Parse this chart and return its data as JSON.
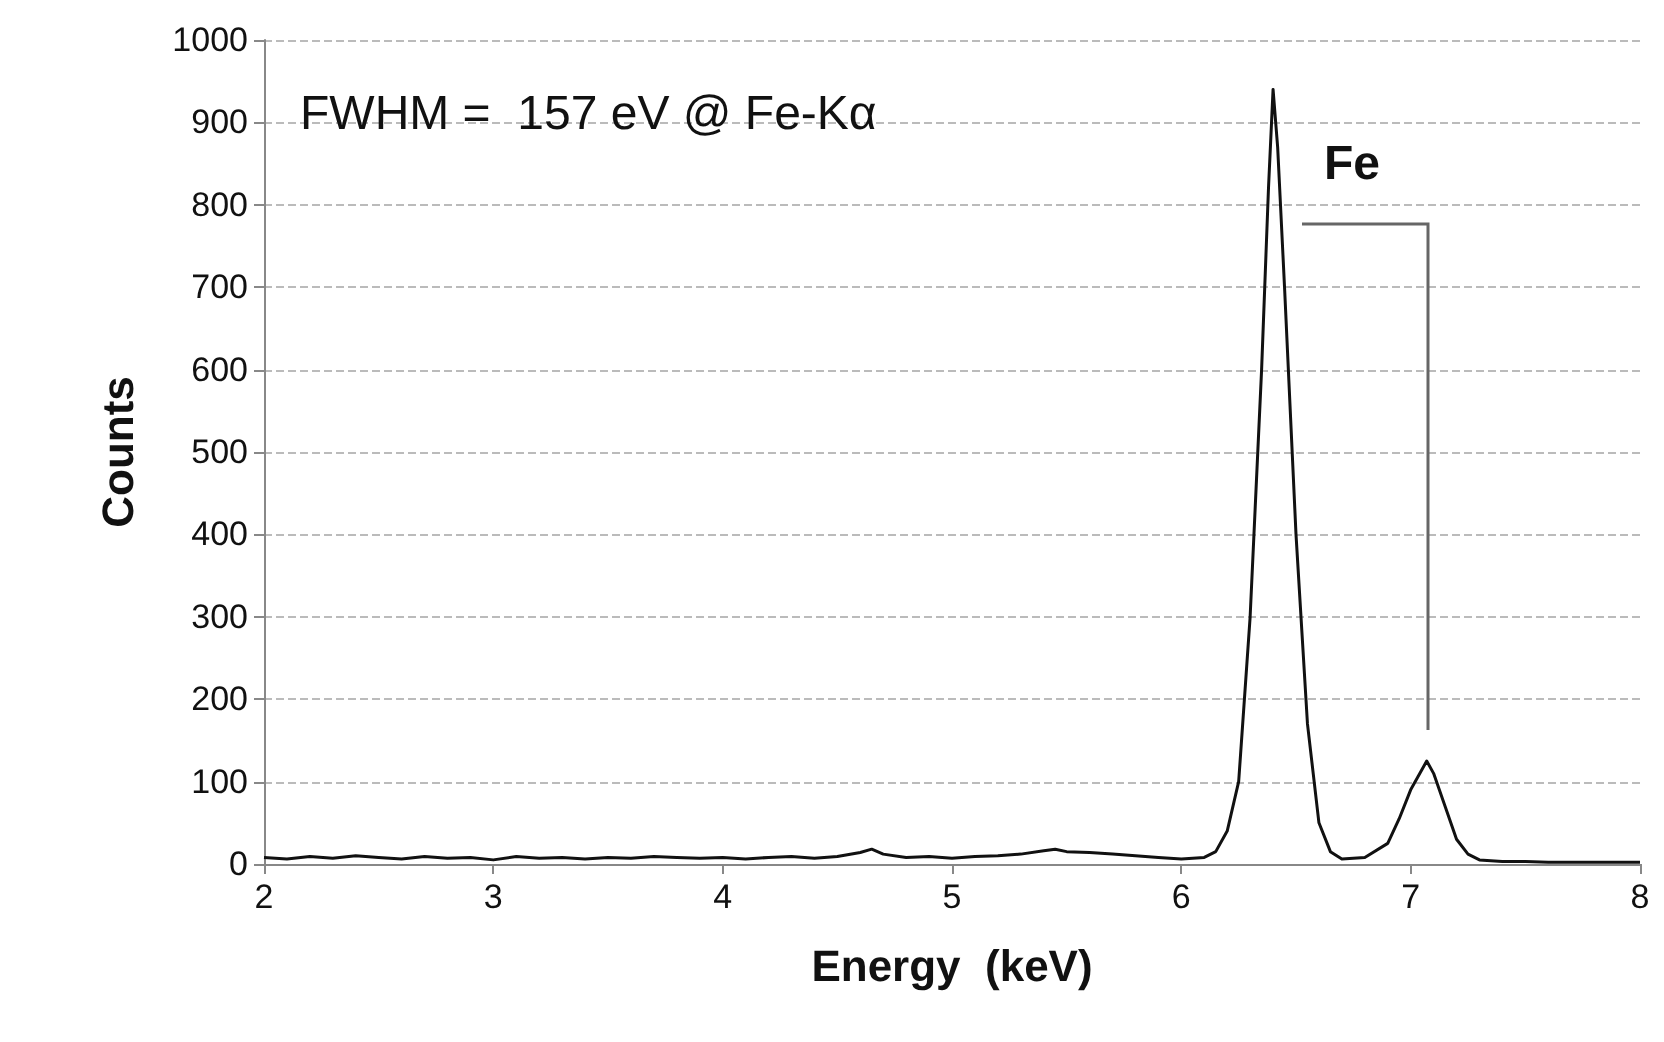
{
  "chart_data": {
    "type": "line",
    "xlabel": "Energy  (keV)",
    "ylabel": "Counts",
    "xlim": [
      2,
      8
    ],
    "xticks": [
      2,
      3,
      4,
      5,
      6,
      7,
      8
    ],
    "ylim": [
      0,
      1000
    ],
    "yticks": [
      0,
      100,
      200,
      300,
      400,
      500,
      600,
      700,
      800,
      900,
      1000
    ],
    "grid": "y",
    "marker": "none",
    "line_style": "solid",
    "annotations": [
      "FWHM =  157 eV @ Fe-Kα",
      "Fe"
    ],
    "series": [
      {
        "color": "#111111",
        "x": [
          2.0,
          2.1,
          2.2,
          2.3,
          2.4,
          2.5,
          2.6,
          2.7,
          2.8,
          2.9,
          3.0,
          3.1,
          3.2,
          3.3,
          3.4,
          3.5,
          3.6,
          3.7,
          3.8,
          3.9,
          4.0,
          4.1,
          4.2,
          4.3,
          4.4,
          4.5,
          4.6,
          4.65,
          4.7,
          4.8,
          4.9,
          5.0,
          5.1,
          5.2,
          5.3,
          5.4,
          5.45,
          5.5,
          5.6,
          5.7,
          5.8,
          5.9,
          6.0,
          6.1,
          6.15,
          6.2,
          6.25,
          6.3,
          6.35,
          6.38,
          6.4,
          6.42,
          6.45,
          6.5,
          6.55,
          6.6,
          6.65,
          6.7,
          6.8,
          6.9,
          6.95,
          7.0,
          7.05,
          7.07,
          7.1,
          7.15,
          7.2,
          7.25,
          7.3,
          7.4,
          7.5,
          7.6,
          7.7,
          7.8,
          7.9,
          8.0
        ],
        "values": [
          8,
          6,
          9,
          7,
          10,
          8,
          6,
          9,
          7,
          8,
          5,
          9,
          7,
          8,
          6,
          8,
          7,
          9,
          8,
          7,
          8,
          6,
          8,
          9,
          7,
          9,
          14,
          18,
          12,
          8,
          9,
          7,
          9,
          10,
          12,
          16,
          18,
          15,
          14,
          12,
          10,
          8,
          6,
          8,
          15,
          40,
          100,
          300,
          600,
          820,
          940,
          870,
          700,
          400,
          170,
          50,
          15,
          6,
          8,
          25,
          55,
          90,
          115,
          125,
          110,
          70,
          30,
          12,
          5,
          3,
          3,
          2,
          2,
          2,
          2,
          2
        ]
      }
    ]
  }
}
